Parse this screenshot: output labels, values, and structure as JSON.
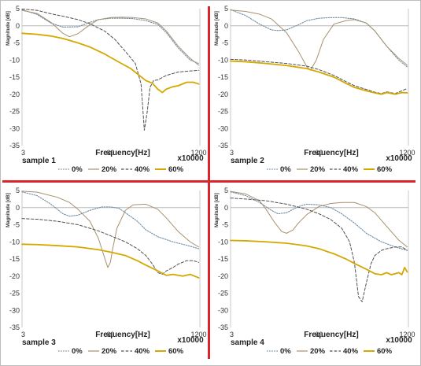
{
  "figure": {
    "colors": {
      "series_0": "#6f8ba3",
      "series_20": "#a8906f",
      "series_40": "#505050",
      "series_60": "#d4a800",
      "divider": "#d9262c",
      "zero_line": "#b8b8b8"
    }
  },
  "chart_data": [
    {
      "type": "line",
      "title": "sample 1",
      "xlabel": "Frequency[Hz]",
      "ylabel": "Magnitude [dB]",
      "x_unit": "x10000",
      "xlim": [
        3,
        1250
      ],
      "x_scale": "log",
      "ylim": [
        -35,
        5
      ],
      "x_ticks": [
        "3",
        "60",
        "1200"
      ],
      "y_ticks": [
        5,
        0,
        -5,
        -10,
        -15,
        -20,
        -25,
        -30,
        -35
      ],
      "legend_position": "bottom",
      "series": [
        {
          "name": "0%",
          "x": [
            3,
            5,
            8,
            12,
            20,
            30,
            40,
            60,
            90,
            130,
            200,
            300,
            400,
            600,
            900,
            1200
          ],
          "y": [
            4.7,
            3.3,
            0.8,
            -0.4,
            -0.3,
            1.0,
            1.8,
            2.2,
            2.2,
            2.1,
            1.5,
            0.4,
            -2.0,
            -6.5,
            -10.0,
            -11.0
          ]
        },
        {
          "name": "20%",
          "x": [
            3,
            5,
            8,
            12,
            15,
            20,
            30,
            40,
            60,
            90,
            130,
            200,
            300,
            400,
            600,
            900,
            1200
          ],
          "y": [
            4.5,
            3.6,
            1.0,
            -2.2,
            -3.2,
            -2.3,
            0.3,
            1.8,
            2.4,
            2.5,
            2.4,
            2.0,
            0.8,
            -1.5,
            -6.0,
            -9.5,
            -11.5
          ]
        },
        {
          "name": "40%",
          "x": [
            3,
            5,
            8,
            12,
            20,
            30,
            50,
            70,
            100,
            140,
            170,
            190,
            210,
            230,
            260,
            300,
            400,
            600,
            900,
            1200
          ],
          "y": [
            4.9,
            4.5,
            3.5,
            2.8,
            1.8,
            0.6,
            -1.6,
            -4.0,
            -7.5,
            -11.0,
            -17.0,
            -30.5,
            -25.0,
            -18.0,
            -16.0,
            -15.8,
            -14.5,
            -13.5,
            -13.2,
            -13.0
          ]
        },
        {
          "name": "60%",
          "x": [
            3,
            5,
            8,
            12,
            20,
            30,
            50,
            80,
            120,
            160,
            200,
            250,
            300,
            350,
            400,
            500,
            600,
            800,
            1000,
            1200
          ],
          "y": [
            -2.2,
            -2.5,
            -3.0,
            -3.7,
            -5.0,
            -6.2,
            -8.3,
            -10.6,
            -12.5,
            -14.5,
            -16.0,
            -16.8,
            -18.5,
            -19.5,
            -18.5,
            -17.8,
            -17.5,
            -16.5,
            -16.5,
            -17.0
          ]
        }
      ]
    },
    {
      "type": "line",
      "title": "sample 2",
      "xlabel": "Frequency[Hz]",
      "ylabel": "Magnitude [dB]",
      "x_unit": "x10000",
      "xlim": [
        3,
        1250
      ],
      "x_scale": "log",
      "ylim": [
        -35,
        5
      ],
      "x_ticks": [
        "3",
        "60",
        "1200"
      ],
      "y_ticks": [
        5,
        0,
        -5,
        -10,
        -15,
        -20,
        -25,
        -30,
        -35
      ],
      "legend_position": "bottom",
      "series": [
        {
          "name": "0%",
          "x": [
            3,
            5,
            8,
            12,
            15,
            20,
            30,
            40,
            60,
            90,
            130,
            200,
            300,
            400,
            600,
            900,
            1200
          ],
          "y": [
            4.7,
            3.0,
            0.5,
            -1.2,
            -1.4,
            -1.2,
            0.3,
            1.5,
            2.2,
            2.4,
            2.4,
            2.0,
            0.8,
            -1.5,
            -6.0,
            -10.0,
            -12.0
          ]
        },
        {
          "name": "20%",
          "x": [
            3,
            5,
            8,
            12,
            20,
            30,
            40,
            45,
            55,
            70,
            100,
            150,
            200,
            300,
            400,
            600,
            900,
            1200
          ],
          "y": [
            4.6,
            4.2,
            3.4,
            2.0,
            -2.0,
            -7.5,
            -12.0,
            -13.0,
            -10.0,
            -4.0,
            0.5,
            1.5,
            1.8,
            0.8,
            -1.5,
            -6.0,
            -9.5,
            -11.5
          ]
        },
        {
          "name": "40%",
          "x": [
            3,
            5,
            10,
            20,
            40,
            60,
            100,
            150,
            200,
            300,
            400,
            500,
            600,
            800,
            1000,
            1200
          ],
          "y": [
            -9.8,
            -10.0,
            -10.5,
            -11.0,
            -11.8,
            -12.8,
            -14.5,
            -16.3,
            -17.5,
            -18.6,
            -19.4,
            -19.8,
            -19.3,
            -19.8,
            -19.0,
            -18.3
          ]
        },
        {
          "name": "60%",
          "x": [
            3,
            5,
            10,
            20,
            40,
            60,
            100,
            150,
            200,
            300,
            400,
            500,
            600,
            800,
            1000,
            1200
          ],
          "y": [
            -10.3,
            -10.5,
            -11.0,
            -11.6,
            -12.5,
            -13.5,
            -15.0,
            -16.8,
            -18.0,
            -19.0,
            -19.6,
            -20.0,
            -19.5,
            -20.0,
            -19.5,
            -19.6
          ]
        }
      ]
    },
    {
      "type": "line",
      "title": "sample 3",
      "xlabel": "Frequency[Hz]",
      "ylabel": "Magnitude [dB]",
      "x_unit": "x10000",
      "xlim": [
        3,
        1250
      ],
      "x_scale": "log",
      "ylim": [
        -35,
        5
      ],
      "x_ticks": [
        "3",
        "60",
        "1200"
      ],
      "y_ticks": [
        5,
        0,
        -5,
        -10,
        -15,
        -20,
        -25,
        -30,
        -35
      ],
      "legend_position": "bottom",
      "series": [
        {
          "name": "0%",
          "x": [
            3,
            5,
            8,
            12,
            15,
            20,
            30,
            45,
            60,
            80,
            100,
            150,
            200,
            300,
            500,
            800,
            1200
          ],
          "y": [
            4.6,
            3.5,
            1.0,
            -1.8,
            -2.5,
            -2.2,
            -0.8,
            0.2,
            0.2,
            -0.2,
            -1.5,
            -4.0,
            -6.5,
            -8.5,
            -10.0,
            -11.0,
            -12.0
          ]
        },
        {
          "name": "20%",
          "x": [
            3,
            5,
            10,
            15,
            20,
            30,
            40,
            50,
            55,
            60,
            65,
            75,
            100,
            130,
            200,
            300,
            400,
            600,
            900,
            1200
          ],
          "y": [
            4.8,
            4.5,
            3.0,
            1.5,
            -0.5,
            -4.0,
            -9.0,
            -15.0,
            -17.5,
            -16.0,
            -12.0,
            -6.0,
            -0.8,
            0.8,
            1.0,
            -0.5,
            -3.0,
            -7.0,
            -10.0,
            -11.5
          ]
        },
        {
          "name": "40%",
          "x": [
            3,
            5,
            10,
            20,
            40,
            60,
            100,
            150,
            200,
            250,
            300,
            350,
            400,
            500,
            600,
            800,
            1000,
            1200
          ],
          "y": [
            -3.2,
            -3.4,
            -4.0,
            -5.0,
            -6.8,
            -8.2,
            -10.0,
            -12.0,
            -14.0,
            -16.5,
            -19.0,
            -19.5,
            -18.5,
            -17.5,
            -16.5,
            -15.5,
            -15.5,
            -16.0
          ]
        },
        {
          "name": "60%",
          "x": [
            3,
            5,
            10,
            20,
            40,
            60,
            100,
            150,
            200,
            300,
            400,
            500,
            700,
            900,
            1200
          ],
          "y": [
            -10.7,
            -10.8,
            -11.1,
            -11.5,
            -12.3,
            -13.0,
            -14.0,
            -15.5,
            -16.8,
            -18.5,
            -19.8,
            -19.5,
            -20.0,
            -19.5,
            -20.5
          ]
        }
      ]
    },
    {
      "type": "line",
      "title": "sample 4",
      "xlabel": "Frequency[Hz]",
      "ylabel": "Magnitude [dB]",
      "x_unit": "x10000",
      "xlim": [
        3,
        1250
      ],
      "x_scale": "log",
      "ylim": [
        -35,
        5
      ],
      "x_ticks": [
        "3",
        "60",
        "1200"
      ],
      "y_ticks": [
        5,
        0,
        -5,
        -10,
        -15,
        -20,
        -25,
        -30,
        -35
      ],
      "legend_position": "bottom",
      "series": [
        {
          "name": "0%",
          "x": [
            3,
            5,
            8,
            12,
            15,
            20,
            30,
            40,
            60,
            90,
            130,
            200,
            300,
            500,
            800,
            1200
          ],
          "y": [
            4.6,
            3.5,
            1.5,
            -0.8,
            -1.8,
            -1.5,
            0.3,
            1.0,
            0.8,
            0.0,
            -1.8,
            -4.5,
            -7.5,
            -10.0,
            -11.5,
            -12.5
          ]
        },
        {
          "name": "20%",
          "x": [
            3,
            5,
            8,
            10,
            13,
            17,
            20,
            25,
            30,
            40,
            60,
            90,
            130,
            200,
            300,
            400,
            600,
            900,
            1200
          ],
          "y": [
            4.7,
            4.0,
            2.0,
            -0.5,
            -4.0,
            -7.0,
            -7.5,
            -6.5,
            -4.5,
            -2.0,
            0.3,
            1.2,
            1.5,
            1.5,
            0.3,
            -1.5,
            -5.5,
            -9.5,
            -11.5
          ]
        },
        {
          "name": "40%",
          "x": [
            3,
            5,
            10,
            20,
            40,
            60,
            90,
            130,
            170,
            200,
            230,
            260,
            300,
            350,
            400,
            500,
            600,
            800,
            1000,
            1200
          ],
          "y": [
            2.8,
            2.5,
            2.0,
            1.0,
            -0.5,
            -1.8,
            -3.5,
            -6.0,
            -10.0,
            -16.0,
            -26.0,
            -27.5,
            -22.0,
            -16.5,
            -14.0,
            -12.5,
            -12.0,
            -11.5,
            -11.5,
            -12.5
          ]
        },
        {
          "name": "60%",
          "x": [
            3,
            5,
            10,
            20,
            40,
            60,
            100,
            150,
            200,
            300,
            400,
            500,
            600,
            700,
            800,
            900,
            1000,
            1100,
            1200
          ],
          "y": [
            -9.6,
            -9.7,
            -10.0,
            -10.4,
            -11.2,
            -12.0,
            -13.5,
            -15.0,
            -16.3,
            -18.0,
            -19.3,
            -19.6,
            -19.0,
            -19.6,
            -19.3,
            -19.0,
            -19.6,
            -17.5,
            -18.8
          ]
        }
      ]
    }
  ]
}
